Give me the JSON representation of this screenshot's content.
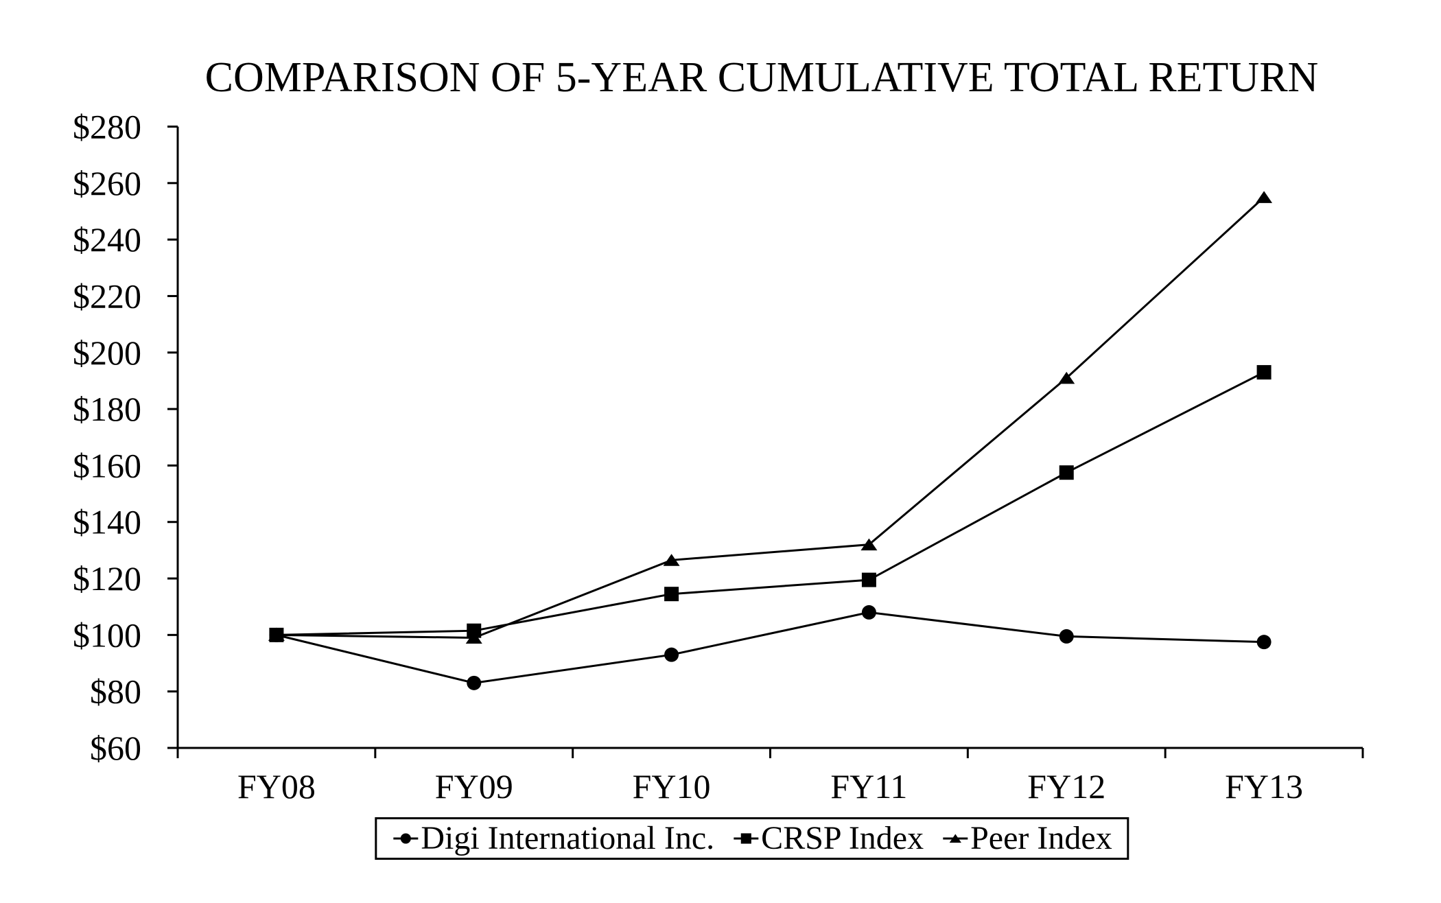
{
  "page": {
    "background": "#ffffff",
    "foreground": "#000000"
  },
  "chart_data": {
    "type": "line",
    "title": "COMPARISON OF 5-YEAR CUMULATIVE TOTAL RETURN",
    "categories": [
      "FY08",
      "FY09",
      "FY10",
      "FY11",
      "FY12",
      "FY13"
    ],
    "series": [
      {
        "name": "Digi International Inc.",
        "marker": "circle",
        "values": [
          100,
          83,
          93,
          108,
          99.5,
          97.5
        ]
      },
      {
        "name": "CRSP Index",
        "marker": "square",
        "values": [
          100,
          101.5,
          114.5,
          119.5,
          157.5,
          193
        ]
      },
      {
        "name": "Peer Index",
        "marker": "triangle",
        "values": [
          100,
          99,
          126.5,
          132,
          191,
          255
        ]
      }
    ],
    "y_axis": {
      "min": 60,
      "max": 280,
      "step": 20,
      "tick_labels": [
        "$60",
        "$80",
        "$100",
        "$120",
        "$140",
        "$160",
        "$180",
        "$200",
        "$220",
        "$240",
        "$260",
        "$280"
      ]
    },
    "x_axis": {
      "tick_labels": [
        "FY08",
        "FY09",
        "FY10",
        "FY11",
        "FY12",
        "FY13"
      ]
    },
    "grid": false,
    "legend_position": "bottom-center",
    "colors": {
      "line": "#000000",
      "background": "#ffffff"
    }
  }
}
